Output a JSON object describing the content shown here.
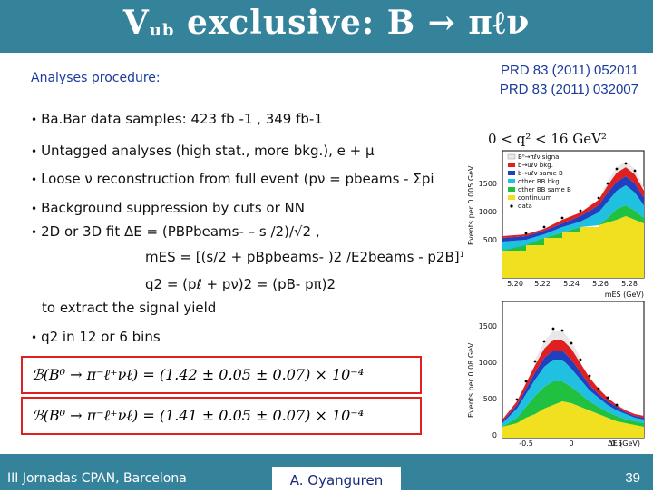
{
  "slide": {
    "title_v": "V",
    "title_ub": "ub",
    "title_rest": " exclusive: B → πℓν",
    "refs": [
      "PRD 83 (2011) 052011",
      "PRD 83 (2011) 032007"
    ],
    "procedure_label": "Analyses procedure:",
    "bullets": [
      "Ba.Bar data samples: 423 fb -1 , 349 fb-1",
      "Untagged analyses (high stat., more bkg.), e +  μ",
      "Loose  ν  reconstruction from full  event (pν = pbeams - Σpi",
      "Background suppression by cuts or NN",
      "2D or 3D  fit  ΔE = (PBPbeams- – s /2)/√2 ,",
      "q2 in 12 or 6 bins"
    ],
    "mes_line": "mES = [(s/2 + pBpbeams- )2 /E2beams  - p2B]½",
    "q2_line": "q2 = (pℓ + pν)2 = (pB- pπ)2",
    "extract_line": "to extract the signal yield",
    "formula1": "ℬ(B⁰ → π⁻ℓ⁺νℓ) = (1.42 ± 0.05 ± 0.07) × 10⁻⁴",
    "formula2": "ℬ(B⁰ → π⁻ℓ⁺νℓ) = (1.41 ± 0.05 ± 0.07) × 10⁻⁴",
    "footer_left": "III Jornadas CPAN, Barcelona",
    "footer_mid": "A. Oyanguren",
    "footer_right": "39"
  },
  "plot": {
    "range_label": "0 < q² < 16 GeV²",
    "legend": [
      "B⁰→πℓν signal",
      "b→uℓν bkg.",
      "b→uℓν same B",
      "other BB bkg.",
      "other BB same B",
      "continuum",
      "data"
    ],
    "legend_colors": [
      "#e8e8e8",
      "#e02020",
      "#2040c0",
      "#20c0e0",
      "#20c040",
      "#f0e020",
      "#000000"
    ],
    "top_ylabel": "Events per 0.005 GeV",
    "top_yticks": [
      "1500",
      "1000",
      "500"
    ],
    "top_xticks": [
      "5.20",
      "5.22",
      "5.24",
      "5.26",
      "5.28"
    ],
    "top_xlabel": "mES (GeV)",
    "bottom_ylabel": "Events per 0.08 GeV",
    "bottom_yticks": [
      "1500",
      "1000",
      "500",
      "0"
    ],
    "bottom_xticks": [
      "-0.5",
      "0",
      "0.5"
    ],
    "bottom_xlabel": "ΔE (GeV)"
  }
}
